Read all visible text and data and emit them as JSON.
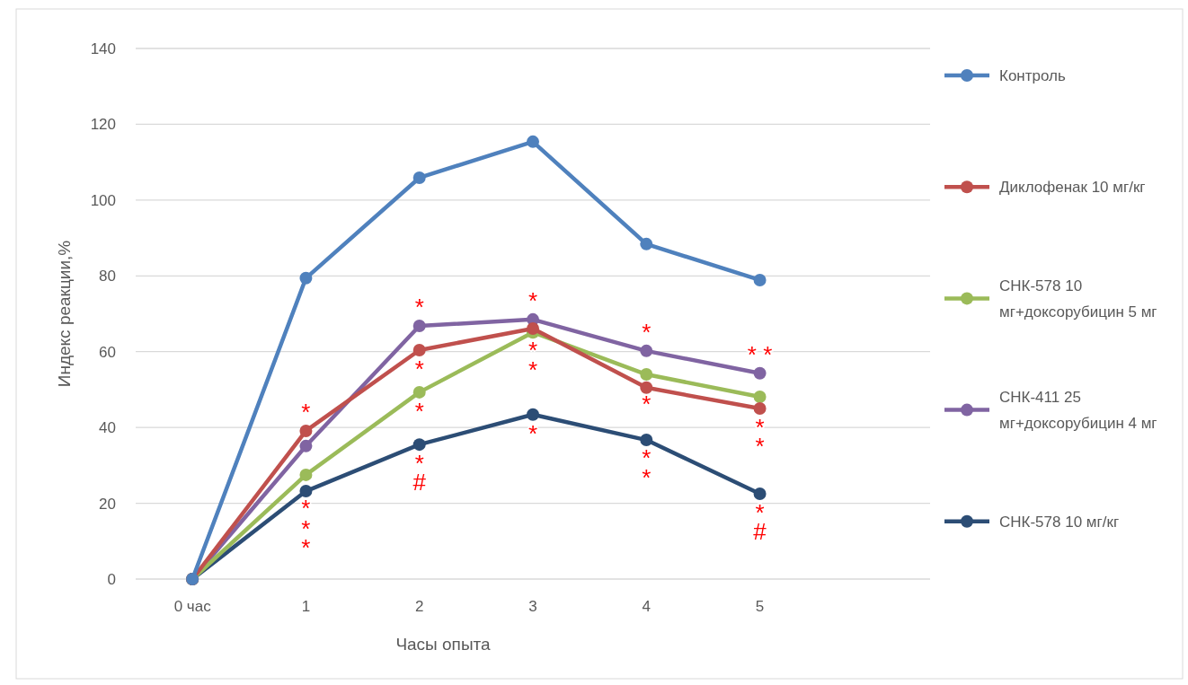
{
  "chart_data": {
    "type": "line",
    "xlabel": "Часы опыта",
    "ylabel": "Индекс реакции,%",
    "categories": [
      "0 час",
      "1",
      "2",
      "3",
      "4",
      "5"
    ],
    "series": [
      {
        "name": "Контроль",
        "color": "#4f81bd",
        "values": [
          0,
          79.4,
          105.9,
          115.4,
          88.4,
          78.9
        ]
      },
      {
        "name": "Диклофенак 10 мг/кг",
        "color": "#c0504d",
        "values": [
          0,
          39.1,
          60.4,
          66.1,
          50.5,
          45.0
        ]
      },
      {
        "name": "СНК-578 10 мг+доксорубицин 5 мг",
        "color": "#9bbb59",
        "values": [
          0,
          27.5,
          49.3,
          65.1,
          54.0,
          48.1
        ]
      },
      {
        "name": "СНК-411 25 мг+доксорубицин 4 мг",
        "color": "#8064a2",
        "values": [
          0,
          35.1,
          66.8,
          68.5,
          60.2,
          54.3
        ]
      },
      {
        "name": "СНК-578 10 мг/кг",
        "color": "#2c4d75",
        "values": [
          0,
          23.2,
          35.5,
          43.4,
          36.7,
          22.5
        ]
      }
    ],
    "ylim": [
      0,
      140
    ],
    "yticks": [
      0,
      20,
      40,
      60,
      80,
      100,
      120,
      140
    ],
    "grid": "y",
    "legend": "right",
    "marker": "circle",
    "line_style": "solid",
    "annotations": [
      {
        "text": "*",
        "x": "1",
        "y": 39.1
      },
      {
        "text": "*",
        "x": "1",
        "y": 35.1
      },
      {
        "text": "*",
        "x": "1",
        "y": 27.5
      },
      {
        "text": "*",
        "x": "1",
        "y": 23.2
      },
      {
        "text": "*",
        "x": "2",
        "y": 66.8
      },
      {
        "text": "*",
        "x": "2",
        "y": 60.4
      },
      {
        "text": "*",
        "x": "2",
        "y": 49.3
      },
      {
        "text": "*",
        "x": "2",
        "y": 35.5
      },
      {
        "text": "#",
        "x": "2",
        "y": 35.5
      },
      {
        "text": "*",
        "x": "3",
        "y": 68.5
      },
      {
        "text": "*",
        "x": "3",
        "y": 66.1
      },
      {
        "text": "*",
        "x": "3",
        "y": 65.1
      },
      {
        "text": "*",
        "x": "3",
        "y": 43.4
      },
      {
        "text": "*",
        "x": "4",
        "y": 60.2
      },
      {
        "text": "*",
        "x": "4",
        "y": 54.0
      },
      {
        "text": "*",
        "x": "4",
        "y": 50.5
      },
      {
        "text": "*",
        "x": "4",
        "y": 36.7
      },
      {
        "text": "* *",
        "x": "5",
        "y": 54.3
      },
      {
        "text": "*",
        "x": "5",
        "y": 45.0
      },
      {
        "text": "*",
        "x": "5",
        "y": 45.0
      },
      {
        "text": "*",
        "x": "5",
        "y": 22.5
      },
      {
        "text": "#",
        "x": "5",
        "y": 22.5
      }
    ]
  }
}
